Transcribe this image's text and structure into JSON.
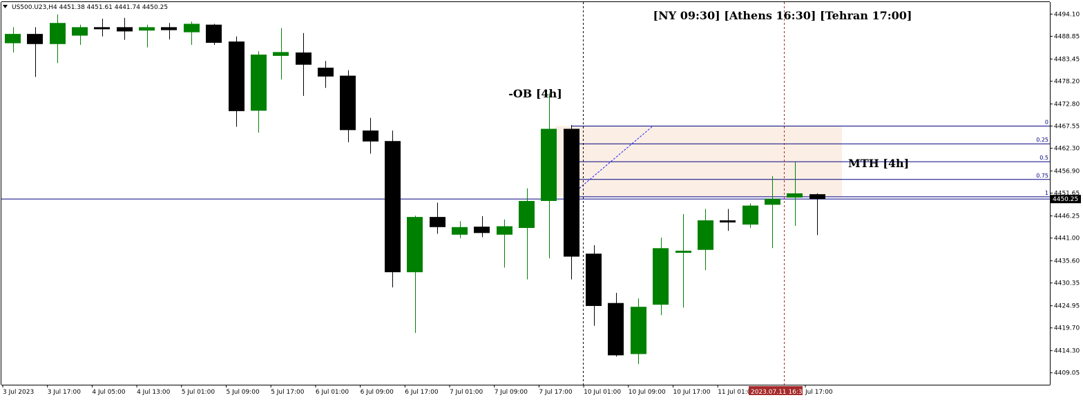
{
  "chart_data": {
    "type": "candlestick",
    "header": {
      "menu_icon": "triangle-down-icon",
      "text": "US500.U23,H4  4451.38 4451.61 4441.74 4450.25"
    },
    "y_range": [
      4406.8,
      4497.2
    ],
    "y_ticks": [
      "4494.10",
      "4488.85",
      "4483.45",
      "4478.20",
      "4472.80",
      "4467.55",
      "4462.30",
      "4456.90",
      "4451.65",
      "4446.25",
      "4441.00",
      "4435.60",
      "4430.35",
      "4424.95",
      "4419.70",
      "4414.30",
      "4409.05"
    ],
    "x_labels": [
      "3 Jul 2023",
      "3 Jul 17:00",
      "4 Jul 05:00",
      "4 Jul 13:00",
      "5 Jul 01:00",
      "5 Jul 09:00",
      "5 Jul 17:00",
      "6 Jul 01:00",
      "6 Jul 09:00",
      "6 Jul 17:00",
      "7 Jul 01:00",
      "7 Jul 09:00",
      "7 Jul 17:00",
      "10 Jul 01:00",
      "10 Jul 09:00",
      "10 Jul 17:00",
      "11 Jul 01:00",
      "Jul 17:00"
    ],
    "x_highlight_label": "2023.07.11 16:30",
    "candles": [
      {
        "o": 4487.2,
        "h": 4491.0,
        "l": 4485.0,
        "c": 4489.4
      },
      {
        "o": 4489.4,
        "h": 4491.0,
        "l": 4479.2,
        "c": 4487.0
      },
      {
        "o": 4487.0,
        "h": 4494.0,
        "l": 4482.5,
        "c": 4492.0
      },
      {
        "o": 4489.0,
        "h": 4491.6,
        "l": 4486.8,
        "c": 4491.0
      },
      {
        "o": 4491.0,
        "h": 4493.0,
        "l": 4488.8,
        "c": 4490.9
      },
      {
        "o": 4491.0,
        "h": 4493.2,
        "l": 4488.0,
        "c": 4490.0
      },
      {
        "o": 4490.2,
        "h": 4491.6,
        "l": 4486.2,
        "c": 4491.0
      },
      {
        "o": 4491.0,
        "h": 4492.0,
        "l": 4488.1,
        "c": 4490.3
      },
      {
        "o": 4489.8,
        "h": 4492.3,
        "l": 4486.8,
        "c": 4491.8
      },
      {
        "o": 4491.6,
        "h": 4491.8,
        "l": 4486.8,
        "c": 4487.3
      },
      {
        "o": 4487.6,
        "h": 4488.8,
        "l": 4467.4,
        "c": 4471.1
      },
      {
        "o": 4471.2,
        "h": 4485.3,
        "l": 4466.0,
        "c": 4484.5
      },
      {
        "o": 4484.2,
        "h": 4490.8,
        "l": 4478.6,
        "c": 4485.1
      },
      {
        "o": 4485.0,
        "h": 4489.6,
        "l": 4474.7,
        "c": 4482.1
      },
      {
        "o": 4481.4,
        "h": 4483.0,
        "l": 4476.6,
        "c": 4479.3
      },
      {
        "o": 4479.5,
        "h": 4480.8,
        "l": 4463.7,
        "c": 4466.6
      },
      {
        "o": 4466.5,
        "h": 4469.5,
        "l": 4461.0,
        "c": 4463.9
      },
      {
        "o": 4464.0,
        "h": 4466.5,
        "l": 4429.3,
        "c": 4432.9
      },
      {
        "o": 4432.9,
        "h": 4446.3,
        "l": 4418.5,
        "c": 4446.0
      },
      {
        "o": 4446.0,
        "h": 4449.4,
        "l": 4442.0,
        "c": 4443.6
      },
      {
        "o": 4441.8,
        "h": 4445.0,
        "l": 4441.0,
        "c": 4443.6
      },
      {
        "o": 4443.7,
        "h": 4446.2,
        "l": 4441.2,
        "c": 4442.2
      },
      {
        "o": 4441.8,
        "h": 4445.4,
        "l": 4434.0,
        "c": 4443.8
      },
      {
        "o": 4443.4,
        "h": 4452.8,
        "l": 4431.2,
        "c": 4449.8
      },
      {
        "o": 4449.8,
        "h": 4475.3,
        "l": 4436.2,
        "c": 4466.9
      },
      {
        "o": 4466.9,
        "h": 4467.8,
        "l": 4431.2,
        "c": 4436.6
      },
      {
        "o": 4437.3,
        "h": 4439.3,
        "l": 4420.2,
        "c": 4424.9
      },
      {
        "o": 4425.6,
        "h": 4428.0,
        "l": 4412.9,
        "c": 4413.2
      },
      {
        "o": 4413.5,
        "h": 4426.7,
        "l": 4411.1,
        "c": 4424.7
      },
      {
        "o": 4425.2,
        "h": 4441.1,
        "l": 4422.7,
        "c": 4438.6
      },
      {
        "o": 4438.0,
        "h": 4446.7,
        "l": 4424.5,
        "c": 4438.0
      },
      {
        "o": 4438.2,
        "h": 4447.9,
        "l": 4433.4,
        "c": 4445.2
      },
      {
        "o": 4445.2,
        "h": 4447.9,
        "l": 4442.7,
        "c": 4444.7
      },
      {
        "o": 4444.2,
        "h": 4449.2,
        "l": 4443.4,
        "c": 4448.7
      },
      {
        "o": 4448.9,
        "h": 4455.7,
        "l": 4438.6,
        "c": 4450.3
      },
      {
        "o": 4450.6,
        "h": 4459.0,
        "l": 4443.9,
        "c": 4451.6
      },
      {
        "o": 4451.4,
        "h": 4451.6,
        "l": 4441.7,
        "c": 4450.25
      }
    ],
    "bull_color": "#008000",
    "bear_color": "#000000",
    "zone": {
      "from_candle": 25,
      "top": 4467.55,
      "bottom": 4450.8,
      "color": "#fbeee4"
    },
    "fib_levels": [
      {
        "label": "0",
        "price": 4467.55
      },
      {
        "label": "0.25",
        "price": 4463.35
      },
      {
        "label": "0.5",
        "price": 4459.1
      },
      {
        "label": "0.75",
        "price": 4454.9
      },
      {
        "label": "1",
        "price": 4450.8
      }
    ],
    "fib_color": "#000080",
    "price_line": {
      "price": 4450.25,
      "label": "4450.25"
    },
    "fib_dashed_line": {
      "from_candle": 25,
      "from_price": 4451.2,
      "to_candle": 29,
      "to_price": 4467.55
    },
    "vlines": [
      {
        "candle": 26,
        "color": "#000000"
      },
      {
        "candle": 35,
        "color": "#a52a2a"
      }
    ],
    "annotations": {
      "ob": "-OB [4h]",
      "mth": "MTH [4h]",
      "sessions": "[NY 09:30] [Athens 16:30] [Tehran 17:00]"
    }
  }
}
